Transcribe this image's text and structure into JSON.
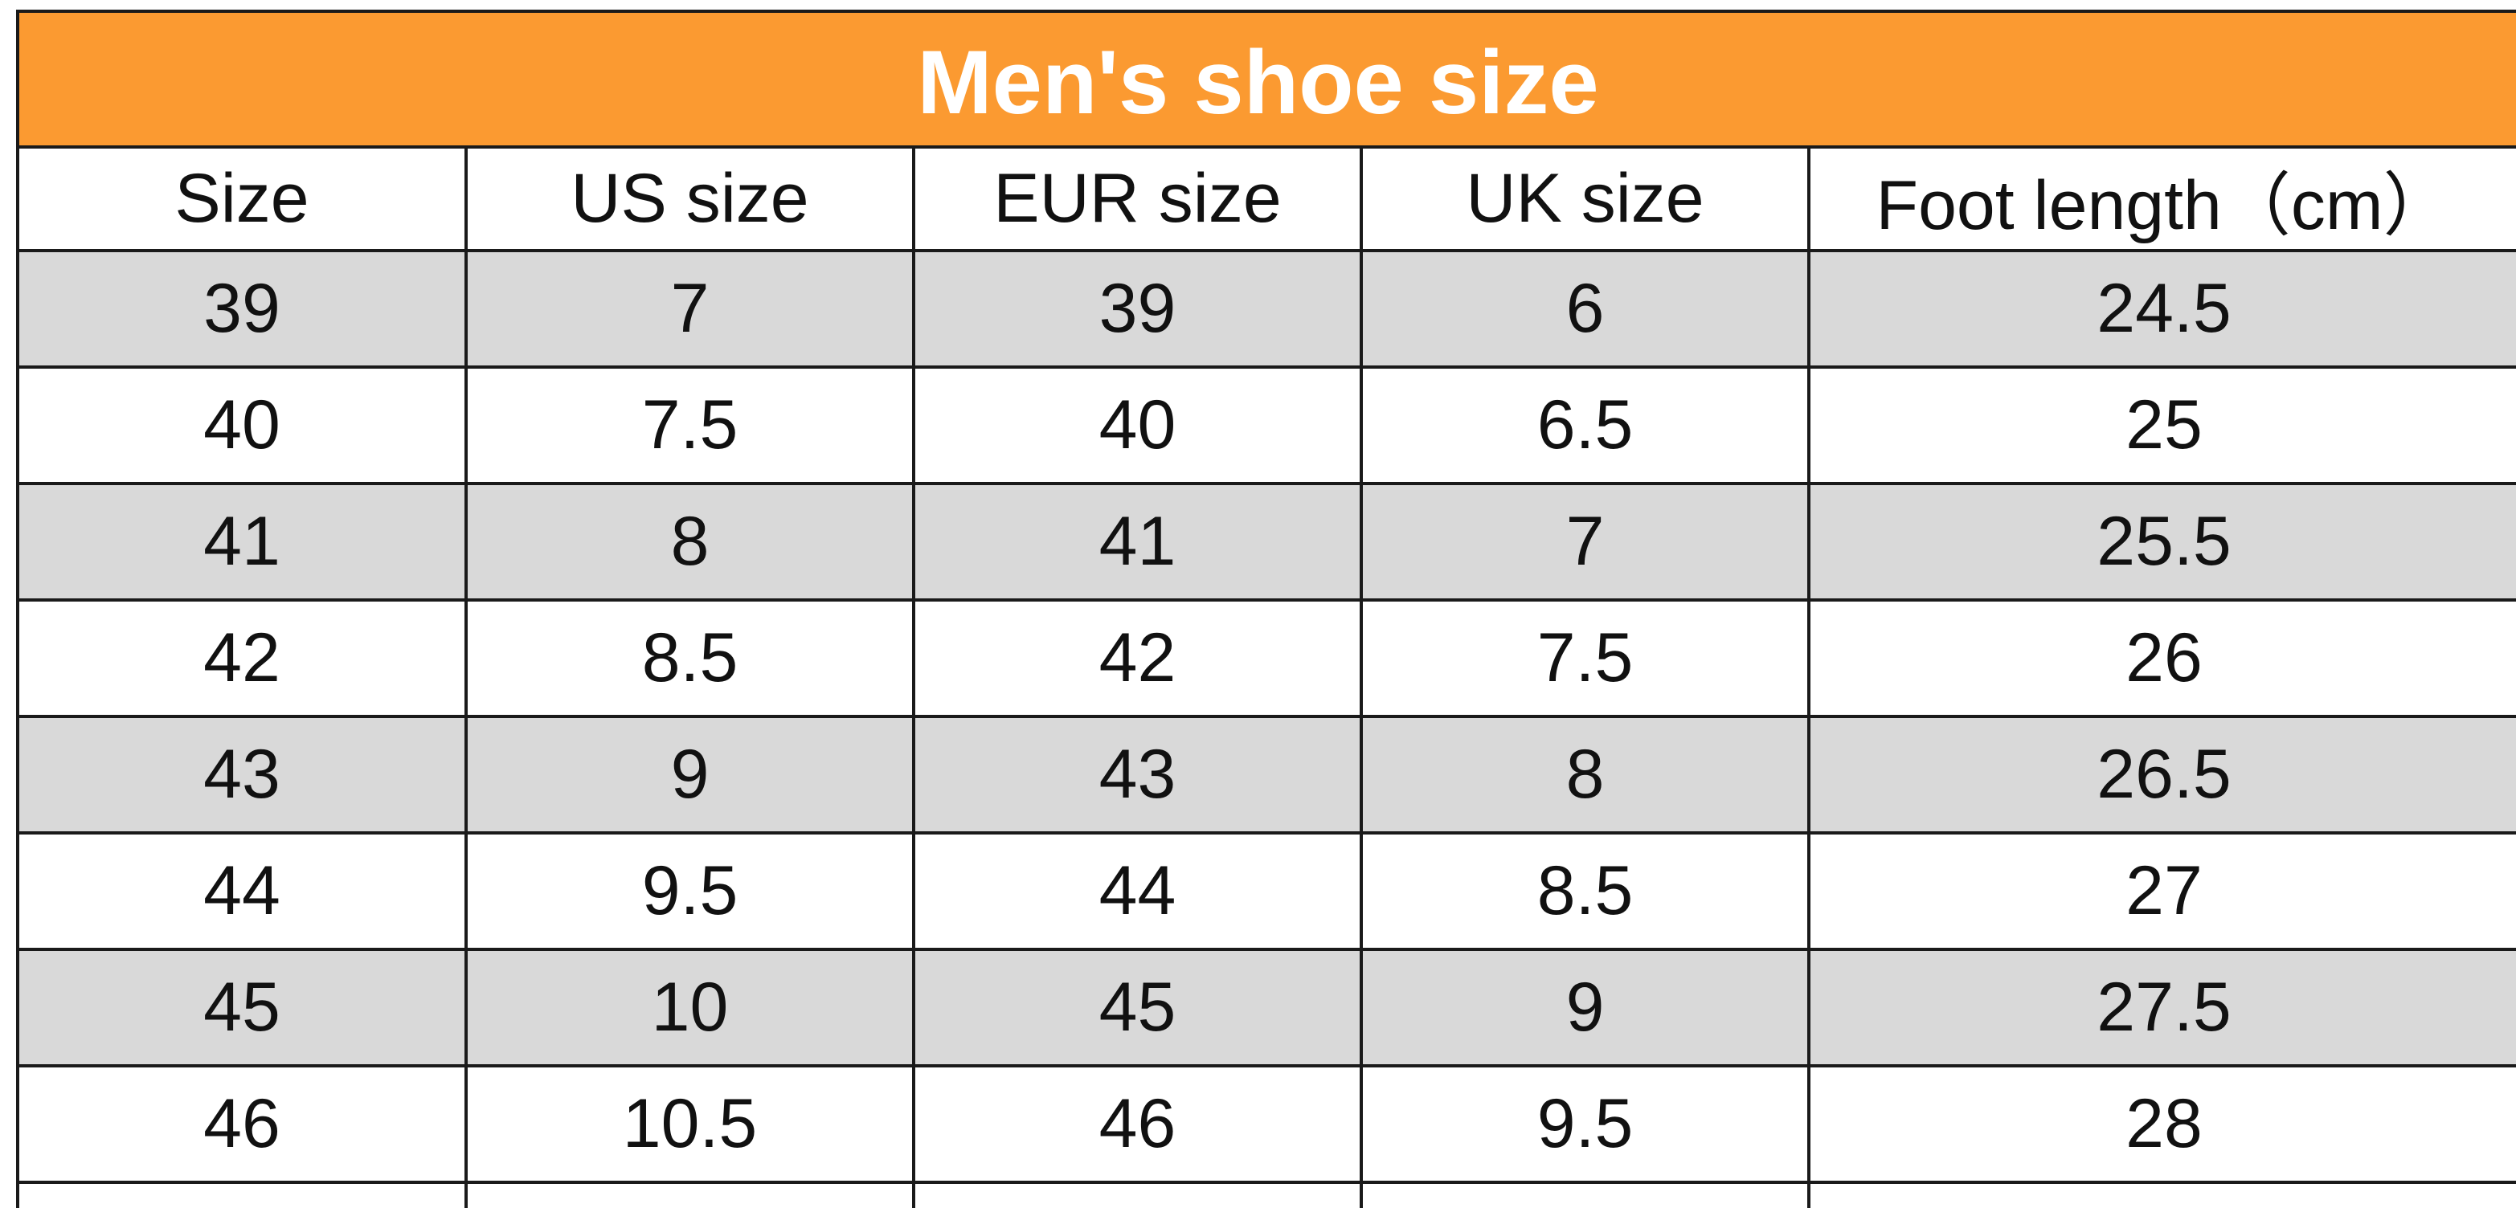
{
  "chart": {
    "title": "Men's shoe size",
    "header_color": "#fb9a31",
    "row_shade_color": "#d9d9d9",
    "columns": [
      "Size",
      "US size",
      "EUR size",
      "UK size",
      "Foot length（cm）"
    ],
    "rows": [
      [
        "39",
        "7",
        "39",
        "6",
        "24.5"
      ],
      [
        "40",
        "7.5",
        "40",
        "6.5",
        "25"
      ],
      [
        "41",
        "8",
        "41",
        "7",
        "25.5"
      ],
      [
        "42",
        "8.5",
        "42",
        "7.5",
        "26"
      ],
      [
        "43",
        "9",
        "43",
        "8",
        "26.5"
      ],
      [
        "44",
        "9.5",
        "44",
        "8.5",
        "27"
      ],
      [
        "45",
        "10",
        "45",
        "9",
        "27.5"
      ],
      [
        "46",
        "10.5",
        "46",
        "9.5",
        "28"
      ]
    ]
  }
}
